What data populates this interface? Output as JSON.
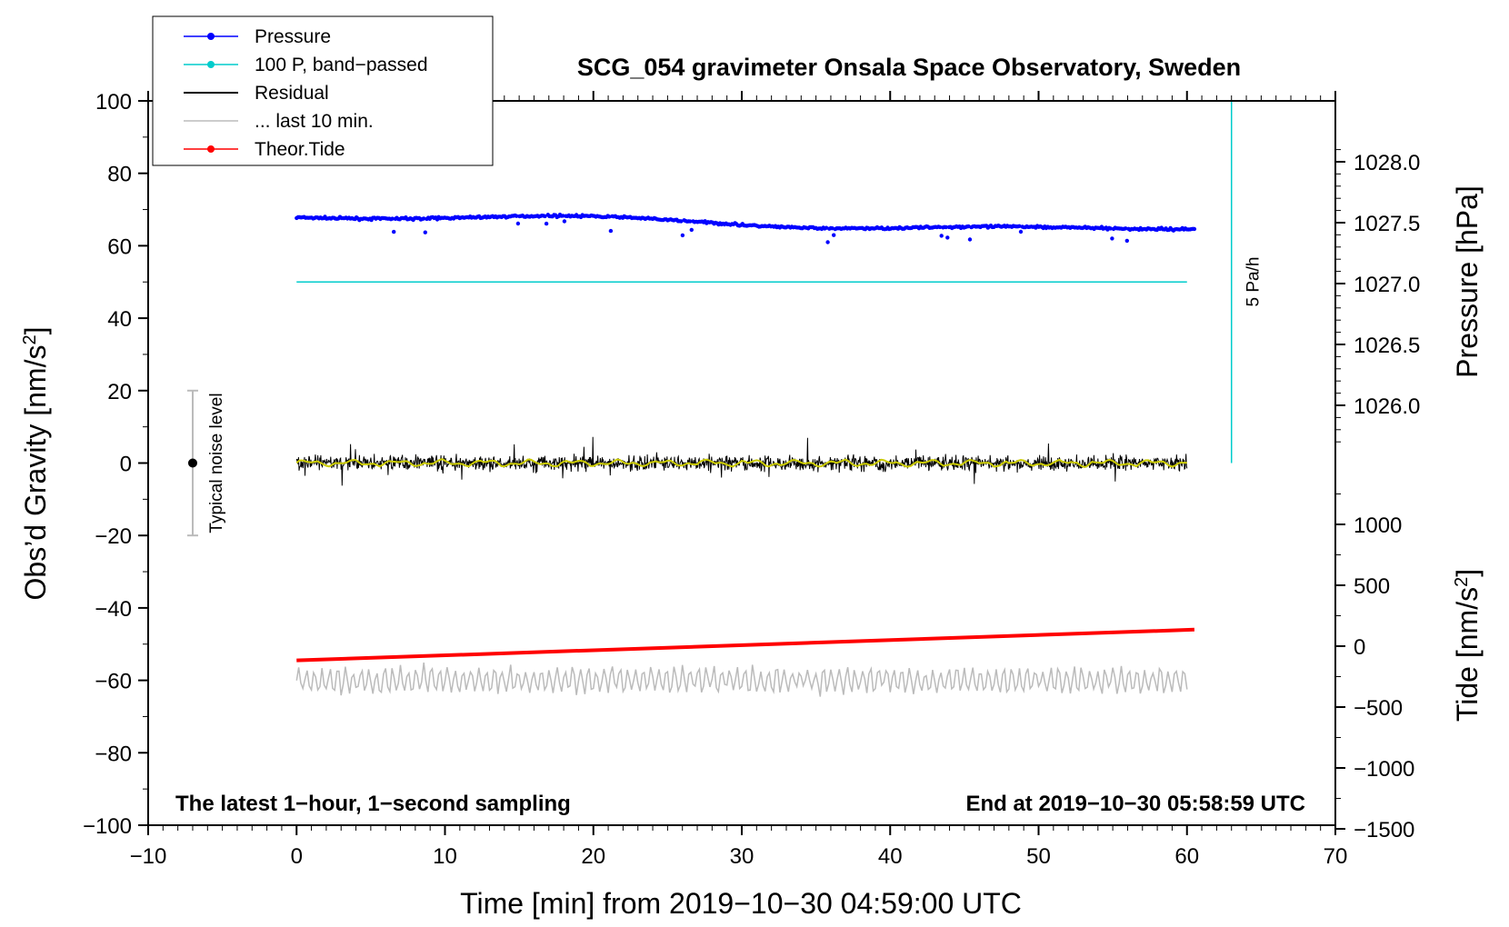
{
  "chart_data": {
    "type": "scatter",
    "title": "SCG_054 gravimeter Onsala Space Observatory, Sweden",
    "xlabel": "Time [min] from 2019−10−30 04:59:00 UTC",
    "ylabel_left": "Obs’d Gravity [nm/s²]",
    "ylabel_right_top": "Pressure [hPa]",
    "ylabel_right_bottom": "Tide [nm/s²]",
    "xlim": [
      -10,
      70
    ],
    "ylim_left": [
      -100,
      100
    ],
    "x_ticks": [
      -10,
      0,
      10,
      20,
      30,
      40,
      50,
      60,
      70
    ],
    "x_tick_labels": [
      "−10",
      "0",
      "10",
      "20",
      "30",
      "40",
      "50",
      "60",
      "70"
    ],
    "y_ticks": [
      100,
      80,
      60,
      40,
      20,
      0,
      -20,
      -40,
      -60,
      -80,
      -100
    ],
    "y_tick_labels": [
      "100",
      "80",
      "60",
      "40",
      "20",
      "0",
      "−20",
      "−40",
      "−60",
      "−80",
      "−100"
    ],
    "pressure_ticks": [
      1028.0,
      1027.5,
      1027.0,
      1026.5,
      1026.0
    ],
    "pressure_tick_labels": [
      "1028.0",
      "1027.5",
      "1027.0",
      "1026.5",
      "1026.0"
    ],
    "tide_ticks": [
      1000,
      500,
      0,
      -500,
      -1000,
      -1500
    ],
    "tide_tick_labels": [
      "1000",
      "500",
      "0",
      "−500",
      "−1000",
      "−1500"
    ],
    "legend": {
      "position": "top-left",
      "entries": [
        {
          "label": "Pressure",
          "color": "#0000ff",
          "marker": true
        },
        {
          "label": "100 P, band−passed",
          "color": "#00cccc",
          "marker": true
        },
        {
          "label": "Residual",
          "color": "#000000",
          "marker": false
        },
        {
          "label": "... last 10 min.",
          "color": "#bbbbbb",
          "marker": false
        },
        {
          "label": "Theor.Tide",
          "color": "#ff0000",
          "marker": true
        }
      ]
    },
    "annotations": {
      "bottom_left": "The latest 1−hour, 1−second sampling",
      "bottom_right": "End at 2019−10−30 05:58:59 UTC",
      "noise_label": "Typical noise level",
      "rate_label": "5 Pa/h"
    },
    "noise_bar": {
      "x": -7,
      "center": 0,
      "low": -20,
      "high": 20
    },
    "rate_bar": {
      "x": 63,
      "from": 0,
      "to": 100
    },
    "series": [
      {
        "name": "Pressure",
        "color": "#0000ff",
        "x_range": [
          0,
          60.5
        ],
        "y_start": 67.8,
        "y_end": 64.8,
        "y_min": 58.5,
        "y_max": 68.8
      },
      {
        "name": "100 P, band−passed",
        "color": "#00cccc",
        "x_range": [
          0,
          60
        ],
        "y": 50
      },
      {
        "name": "Residual",
        "color": "#000000",
        "x_range": [
          0,
          60
        ],
        "y_center": 0,
        "y_min": -9,
        "y_max": 10
      },
      {
        "name": "Residual smoothed",
        "color": "#cccc00",
        "x_range": [
          0,
          60
        ],
        "y_center": 0
      },
      {
        "name": "... last 10 min.",
        "color": "#bbbbbb",
        "x_range": [
          0,
          60
        ],
        "y_center": -60,
        "y_min": -70,
        "y_max": -52
      },
      {
        "name": "Theor.Tide",
        "color": "#ff0000",
        "x_range": [
          0,
          60.5
        ],
        "y_start": -54.5,
        "y_end": -46
      }
    ]
  },
  "colors": {
    "pressure": "#0000ff",
    "bandpassed": "#00cccc",
    "residual": "#000000",
    "smoothed": "#cccc00",
    "last10": "#bbbbbb",
    "tide": "#ff0000"
  }
}
